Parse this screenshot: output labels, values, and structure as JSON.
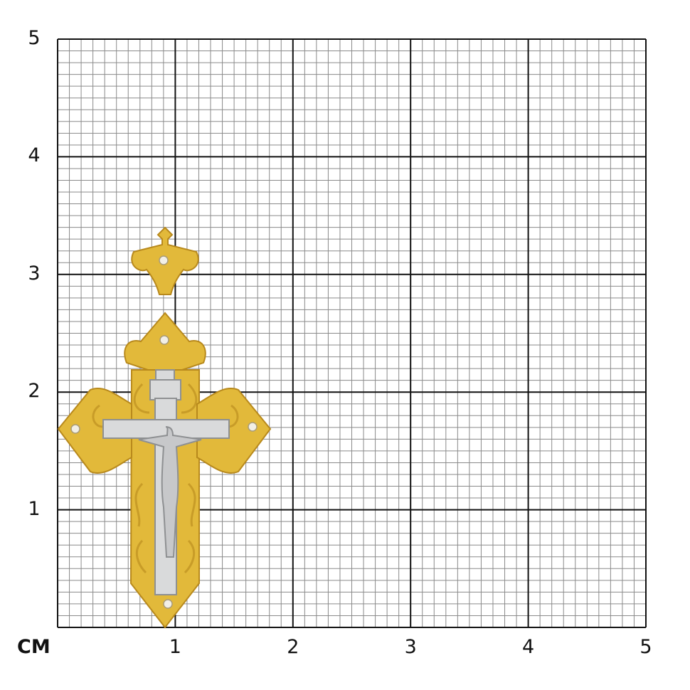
{
  "unit_label": "CM",
  "x_ticks": [
    "1",
    "2",
    "3",
    "4",
    "5"
  ],
  "y_ticks": [
    "1",
    "2",
    "3",
    "4",
    "5"
  ],
  "grid": {
    "range_cm": [
      0,
      5
    ],
    "major_step_cm": 1,
    "minor_step_mm": 1
  },
  "product": {
    "type": "cross-pendant-with-crucifix",
    "height_cm": 3.4,
    "width_cm": 1.8
  },
  "colors": {
    "major_line": "#111111",
    "minor_line": "#8a8a8a",
    "gold": "#e2b93a",
    "gold_dark": "#b8891c",
    "silver": "#d9dadb",
    "silver_dark": "#8e9092"
  }
}
